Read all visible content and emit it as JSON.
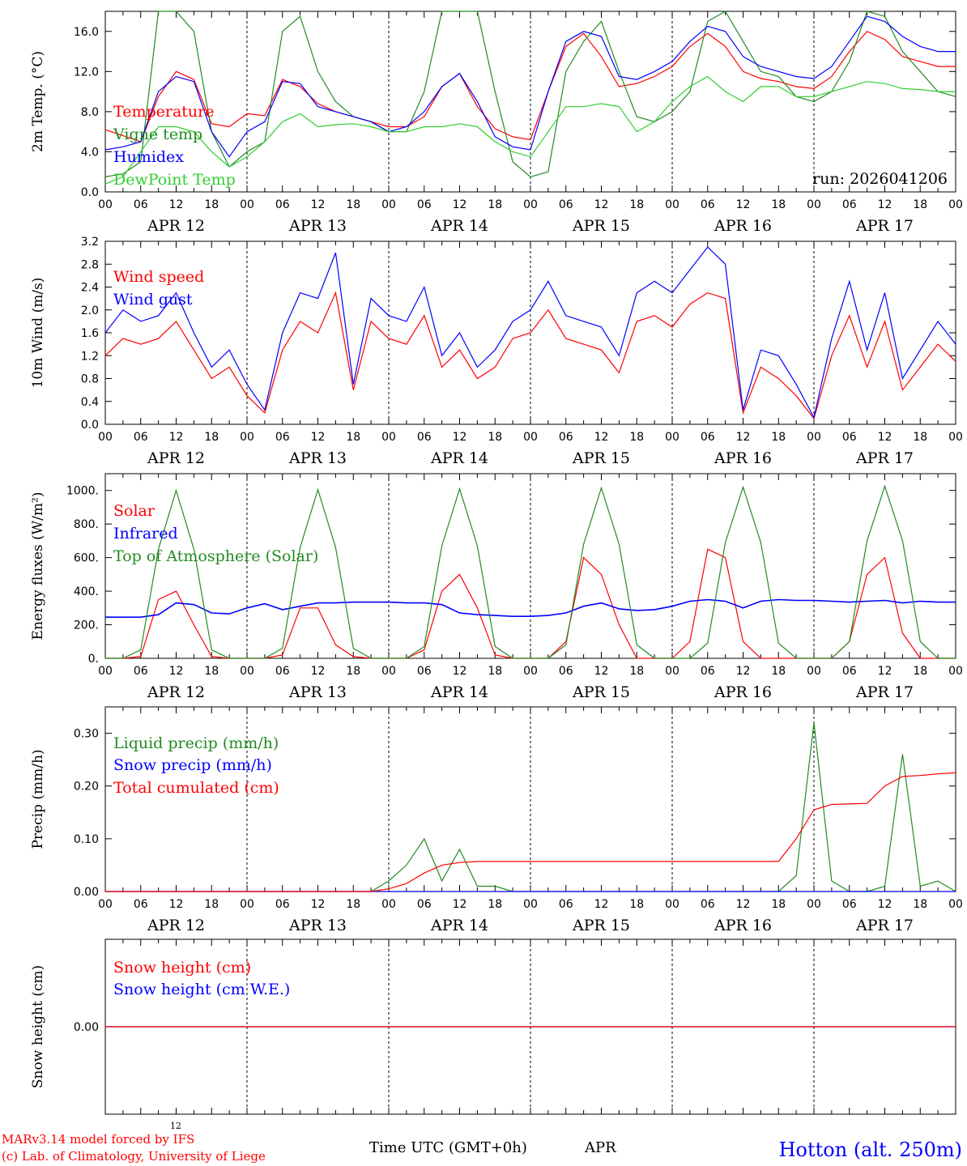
{
  "footer": {
    "model_line": "MARv3.14 model forced by IFS",
    "copyright_line": "(c) Lab. of Climatology, University of Liege",
    "small_tick": "12",
    "time_axis": "Time UTC (GMT+0h)",
    "month": "APR",
    "station": "Hotton (alt. 250m)"
  },
  "colors": {
    "red": "#ff0000",
    "blue": "#0000ff",
    "dark_green": "#228b22",
    "light_green": "#32cd32"
  },
  "x_axis": {
    "hour_labels": [
      "00",
      "06",
      "12",
      "18",
      "00",
      "06",
      "12",
      "18",
      "00",
      "06",
      "12",
      "18",
      "00",
      "06",
      "12",
      "18",
      "00",
      "06",
      "12",
      "18",
      "00",
      "06",
      "12",
      "18",
      "00"
    ],
    "day_labels": [
      "APR 12",
      "APR 13",
      "APR 14",
      "APR 15",
      "APR 16",
      "APR 17"
    ],
    "range_hours": [
      0,
      144
    ]
  },
  "chart_data": [
    {
      "type": "line",
      "ylabel": "2m Temp. (°C)",
      "ylim": [
        0,
        18
      ],
      "yticks": [
        "0.0",
        "4.0",
        "8.0",
        "12.0",
        "16.0"
      ],
      "ytick_values": [
        0,
        4,
        8,
        12,
        16
      ],
      "annotation": "run: 2026041206",
      "legend": [
        "Temperature",
        "Vigne temp",
        "Humidex",
        "DewPoint Temp"
      ],
      "x": [
        0,
        3,
        6,
        9,
        12,
        15,
        18,
        21,
        24,
        27,
        30,
        33,
        36,
        39,
        42,
        45,
        48,
        51,
        54,
        57,
        60,
        63,
        66,
        69,
        72,
        75,
        78,
        81,
        84,
        87,
        90,
        93,
        96,
        99,
        102,
        105,
        108,
        111,
        114,
        117,
        120,
        123,
        126,
        129,
        132,
        135,
        138,
        141,
        144
      ],
      "series": [
        {
          "name": "Temperature",
          "color": "red",
          "values": [
            6.2,
            5.6,
            5.0,
            9.5,
            12.0,
            11.2,
            6.8,
            6.5,
            7.8,
            7.6,
            11.2,
            10.5,
            8.8,
            8.0,
            7.5,
            7.0,
            6.5,
            6.5,
            7.5,
            10.5,
            11.8,
            8.5,
            6.3,
            5.5,
            5.2,
            10.0,
            14.5,
            15.8,
            13.5,
            10.5,
            10.8,
            11.5,
            12.5,
            14.5,
            15.8,
            14.5,
            12.0,
            11.3,
            11.0,
            10.5,
            10.3,
            11.5,
            14.0,
            16.0,
            15.2,
            13.5,
            13.0,
            12.5,
            12.5
          ]
        },
        {
          "name": "Vigne temp",
          "color": "dark_green",
          "values": [
            1.5,
            1.8,
            3.0,
            18.0,
            18.0,
            16.0,
            6.0,
            2.5,
            4.0,
            5.0,
            16.0,
            17.5,
            12.0,
            9.0,
            7.5,
            7.0,
            6.0,
            6.0,
            10.0,
            18.0,
            18.0,
            18.0,
            10.0,
            3.0,
            1.5,
            2.0,
            12.0,
            15.0,
            17.0,
            12.0,
            7.5,
            7.0,
            8.0,
            10.0,
            17.0,
            18.0,
            15.0,
            12.0,
            11.5,
            9.5,
            9.0,
            10.0,
            13.0,
            18.0,
            17.5,
            14.0,
            12.0,
            10.0,
            9.5
          ]
        },
        {
          "name": "Humidex",
          "color": "blue",
          "values": [
            4.2,
            4.5,
            5.0,
            10.0,
            11.5,
            11.0,
            6.0,
            3.5,
            6.0,
            7.0,
            11.0,
            10.8,
            8.5,
            8.0,
            7.5,
            7.0,
            6.0,
            6.5,
            8.0,
            10.5,
            11.8,
            9.0,
            5.5,
            4.5,
            4.2,
            10.0,
            15.0,
            16.0,
            15.5,
            11.5,
            11.2,
            12.0,
            13.0,
            15.0,
            16.5,
            16.0,
            13.5,
            12.5,
            12.0,
            11.5,
            11.3,
            12.5,
            15.0,
            17.5,
            17.0,
            15.5,
            14.5,
            14.0,
            14.0
          ]
        },
        {
          "name": "DewPoint Temp",
          "color": "light_green",
          "values": [
            0.8,
            1.5,
            4.0,
            6.5,
            6.5,
            6.0,
            4.0,
            2.5,
            3.5,
            5.0,
            7.0,
            7.8,
            6.5,
            6.7,
            6.8,
            6.5,
            6.0,
            6.0,
            6.5,
            6.5,
            6.8,
            6.5,
            5.0,
            4.0,
            3.5,
            6.0,
            8.5,
            8.5,
            8.8,
            8.5,
            6.0,
            7.0,
            9.0,
            10.5,
            11.5,
            10.0,
            9.0,
            10.5,
            10.5,
            9.5,
            9.5,
            10.0,
            10.5,
            11.0,
            10.8,
            10.3,
            10.2,
            10.0,
            10.0
          ]
        }
      ]
    },
    {
      "type": "line",
      "ylabel": "10m Wind (m/s)",
      "ylim": [
        0,
        3.2
      ],
      "yticks": [
        "0.0",
        "0.4",
        "0.8",
        "1.2",
        "1.6",
        "2.0",
        "2.4",
        "2.8",
        "3.2"
      ],
      "ytick_values": [
        0,
        0.4,
        0.8,
        1.2,
        1.6,
        2.0,
        2.4,
        2.8,
        3.2
      ],
      "legend": [
        "Wind speed",
        "Wind gust"
      ],
      "x": [
        0,
        3,
        6,
        9,
        12,
        15,
        18,
        21,
        24,
        27,
        30,
        33,
        36,
        39,
        42,
        45,
        48,
        51,
        54,
        57,
        60,
        63,
        66,
        69,
        72,
        75,
        78,
        81,
        84,
        87,
        90,
        93,
        96,
        99,
        102,
        105,
        108,
        111,
        114,
        117,
        120,
        123,
        126,
        129,
        132,
        135,
        138,
        141,
        144
      ],
      "series": [
        {
          "name": "Wind speed",
          "color": "red",
          "values": [
            1.2,
            1.5,
            1.4,
            1.5,
            1.8,
            1.3,
            0.8,
            1.0,
            0.5,
            0.2,
            1.3,
            1.8,
            1.6,
            2.3,
            0.6,
            1.8,
            1.5,
            1.4,
            1.9,
            1.0,
            1.3,
            0.8,
            1.0,
            1.5,
            1.6,
            2.0,
            1.5,
            1.4,
            1.3,
            0.9,
            1.8,
            1.9,
            1.7,
            2.1,
            2.3,
            2.2,
            0.2,
            1.0,
            0.8,
            0.5,
            0.1,
            1.2,
            1.9,
            1.0,
            1.8,
            0.6,
            1.0,
            1.4,
            1.1
          ]
        },
        {
          "name": "Wind gust",
          "color": "blue",
          "values": [
            1.6,
            2.0,
            1.8,
            1.9,
            2.3,
            1.6,
            1.0,
            1.3,
            0.7,
            0.25,
            1.6,
            2.3,
            2.2,
            3.0,
            0.7,
            2.2,
            1.9,
            1.8,
            2.4,
            1.2,
            1.6,
            1.0,
            1.3,
            1.8,
            2.0,
            2.5,
            1.9,
            1.8,
            1.7,
            1.2,
            2.3,
            2.5,
            2.3,
            2.7,
            3.1,
            2.8,
            0.25,
            1.3,
            1.2,
            0.7,
            0.12,
            1.5,
            2.5,
            1.3,
            2.3,
            0.8,
            1.3,
            1.8,
            1.4
          ]
        }
      ]
    },
    {
      "type": "line",
      "ylabel": "Energy fluxes (W/m²)",
      "ylim": [
        0,
        1100
      ],
      "yticks": [
        "0.",
        "200.",
        "400.",
        "600.",
        "800.",
        "1000."
      ],
      "ytick_values": [
        0,
        200,
        400,
        600,
        800,
        1000
      ],
      "legend": [
        "Solar",
        "Infrared",
        "Top of Atmosphere (Solar)"
      ],
      "x": [
        0,
        3,
        6,
        9,
        12,
        15,
        18,
        21,
        24,
        27,
        30,
        33,
        36,
        39,
        42,
        45,
        48,
        51,
        54,
        57,
        60,
        63,
        66,
        69,
        72,
        75,
        78,
        81,
        84,
        87,
        90,
        93,
        96,
        99,
        102,
        105,
        108,
        111,
        114,
        117,
        120,
        123,
        126,
        129,
        132,
        135,
        138,
        141,
        144
      ],
      "series": [
        {
          "name": "Solar",
          "color": "red",
          "values": [
            0,
            0,
            10,
            350,
            400,
            200,
            10,
            0,
            0,
            0,
            20,
            300,
            300,
            80,
            10,
            0,
            0,
            0,
            50,
            400,
            500,
            300,
            20,
            0,
            0,
            0,
            100,
            600,
            500,
            200,
            0,
            0,
            0,
            100,
            650,
            600,
            100,
            0,
            0,
            0,
            0,
            0,
            100,
            500,
            600,
            150,
            0,
            0,
            0
          ]
        },
        {
          "name": "Infrared",
          "color": "blue",
          "values": [
            245,
            245,
            245,
            260,
            330,
            320,
            270,
            265,
            300,
            325,
            290,
            310,
            330,
            330,
            335,
            335,
            335,
            330,
            330,
            320,
            270,
            260,
            255,
            250,
            250,
            255,
            270,
            310,
            330,
            295,
            285,
            290,
            310,
            340,
            350,
            340,
            300,
            340,
            350,
            345,
            345,
            340,
            335,
            340,
            345,
            330,
            340,
            335,
            335
          ]
        },
        {
          "name": "Top of Atmosphere (Solar)",
          "color": "dark_green",
          "values": [
            0,
            0,
            50,
            650,
            1000,
            650,
            50,
            0,
            0,
            0,
            60,
            660,
            1005,
            660,
            60,
            0,
            0,
            0,
            70,
            670,
            1010,
            670,
            70,
            0,
            0,
            0,
            80,
            680,
            1015,
            680,
            80,
            0,
            0,
            0,
            90,
            690,
            1020,
            690,
            90,
            0,
            0,
            0,
            100,
            700,
            1025,
            700,
            100,
            0,
            0
          ]
        }
      ]
    },
    {
      "type": "line",
      "ylabel": "Precip (mm/h)",
      "ylim": [
        0,
        0.35
      ],
      "yticks": [
        "0.00",
        "0.10",
        "0.20",
        "0.30"
      ],
      "ytick_values": [
        0,
        0.1,
        0.2,
        0.3
      ],
      "legend": [
        "Liquid precip (mm/h)",
        "Snow precip (mm/h)",
        "Total cumulated (cm)"
      ],
      "x": [
        0,
        3,
        6,
        9,
        12,
        15,
        18,
        21,
        24,
        27,
        30,
        33,
        36,
        39,
        42,
        45,
        48,
        51,
        54,
        57,
        60,
        63,
        66,
        69,
        72,
        75,
        78,
        81,
        84,
        87,
        90,
        93,
        96,
        99,
        102,
        105,
        108,
        111,
        114,
        117,
        120,
        123,
        126,
        129,
        132,
        135,
        138,
        141,
        144
      ],
      "series": [
        {
          "name": "Liquid precip (mm/h)",
          "color": "dark_green",
          "values": [
            0,
            0,
            0,
            0,
            0,
            0,
            0,
            0,
            0,
            0,
            0,
            0,
            0,
            0,
            0,
            0,
            0.02,
            0.05,
            0.1,
            0.02,
            0.08,
            0.01,
            0.01,
            0,
            0,
            0,
            0,
            0,
            0,
            0,
            0,
            0,
            0,
            0,
            0,
            0,
            0,
            0,
            0,
            0.03,
            0.32,
            0.02,
            0,
            0,
            0.01,
            0.26,
            0.01,
            0.02,
            0
          ]
        },
        {
          "name": "Snow precip (mm/h)",
          "color": "blue",
          "values": [
            0,
            0,
            0,
            0,
            0,
            0,
            0,
            0,
            0,
            0,
            0,
            0,
            0,
            0,
            0,
            0,
            0,
            0,
            0,
            0,
            0,
            0,
            0,
            0,
            0,
            0,
            0,
            0,
            0,
            0,
            0,
            0,
            0,
            0,
            0,
            0,
            0,
            0,
            0,
            0,
            0,
            0,
            0,
            0,
            0,
            0,
            0,
            0,
            0
          ]
        },
        {
          "name": "Total cumulated (cm)",
          "color": "red",
          "values": [
            0,
            0,
            0,
            0,
            0,
            0,
            0,
            0,
            0,
            0,
            0,
            0,
            0,
            0,
            0,
            0,
            0.005,
            0.015,
            0.035,
            0.05,
            0.055,
            0.057,
            0.057,
            0.057,
            0.057,
            0.057,
            0.057,
            0.057,
            0.057,
            0.057,
            0.057,
            0.057,
            0.057,
            0.057,
            0.057,
            0.057,
            0.057,
            0.057,
            0.057,
            0.1,
            0.155,
            0.165,
            0.166,
            0.167,
            0.2,
            0.218,
            0.22,
            0.223,
            0.225
          ]
        }
      ]
    },
    {
      "type": "line",
      "ylabel": "Snow height (cm)",
      "ylim": [
        -0.5,
        0.5
      ],
      "yticks": [
        "0.00"
      ],
      "ytick_values": [
        0
      ],
      "legend": [
        "Snow height (cm)",
        "Snow height (cm W.E.)"
      ],
      "x": [
        0,
        144
      ],
      "series": [
        {
          "name": "Snow height (cm W.E.)",
          "color": "blue",
          "values": [
            0,
            0
          ]
        },
        {
          "name": "Snow height (cm)",
          "color": "red",
          "values": [
            0,
            0
          ]
        }
      ]
    }
  ]
}
